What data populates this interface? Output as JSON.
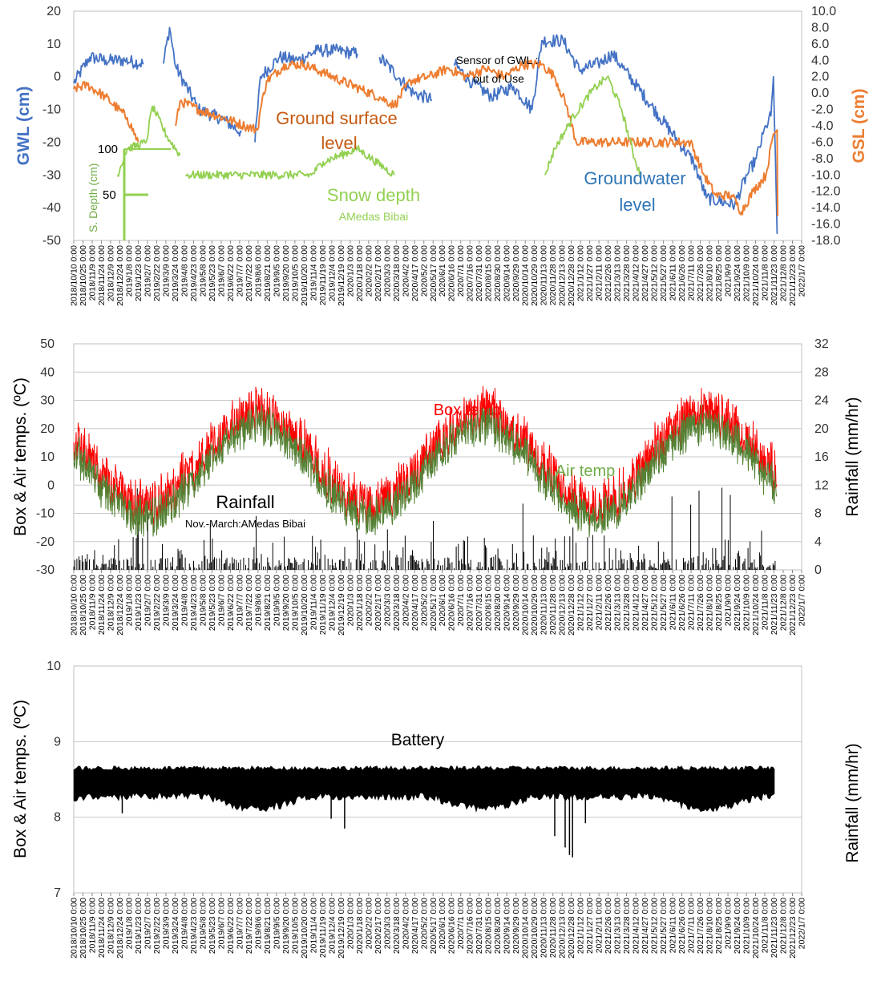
{
  "colors": {
    "gwl": "#4472C4",
    "gsl": "#ED7D31",
    "snow": "#92D050",
    "box": "#FF0000",
    "air": "#548235",
    "rain": "#000000",
    "battery": "#000000",
    "grid": "#C8C8C8"
  },
  "date_ticks": [
    "2018/10/10 0:00",
    "2018/10/25 0:00",
    "2018/11/9 0:00",
    "2018/11/24 0:00",
    "2018/12/9 0:00",
    "2018/12/24 0:00",
    "2019/1/8 0:00",
    "2019/1/23 0:00",
    "2019/2/7 0:00",
    "2019/2/22 0:00",
    "2019/3/9 0:00",
    "2019/3/24 0:00",
    "2019/4/8 0:00",
    "2019/4/23 0:00",
    "2019/5/8 0:00",
    "2019/5/23 0:00",
    "2019/6/7 0:00",
    "2019/6/22 0:00",
    "2019/7/7 0:00",
    "2019/7/22 0:00",
    "2019/8/6 0:00",
    "2019/8/21 0:00",
    "2019/9/5 0:00",
    "2019/9/20 0:00",
    "2019/10/5 0:00",
    "2019/10/20 0:00",
    "2019/11/4 0:00",
    "2019/11/19 0:00",
    "2019/12/4 0:00",
    "2019/12/19 0:00",
    "2020/1/3 0:00",
    "2020/1/18 0:00",
    "2020/2/2 0:00",
    "2020/2/17 0:00",
    "2020/3/3 0:00",
    "2020/3/18 0:00",
    "2020/4/2 0:00",
    "2020/4/17 0:00",
    "2020/5/2 0:00",
    "2020/5/17 0:00",
    "2020/6/1 0:00",
    "2020/6/16 0:00",
    "2020/7/1 0:00",
    "2020/7/16 0:00",
    "2020/7/31 0:00",
    "2020/8/15 0:00",
    "2020/8/30 0:00",
    "2020/9/14 0:00",
    "2020/9/29 0:00",
    "2020/10/14 0:00",
    "2020/10/29 0:00",
    "2020/11/13 0:00",
    "2020/11/28 0:00",
    "2020/12/13 0:00",
    "2020/12/28 0:00",
    "2021/1/12 0:00",
    "2021/1/27 0:00",
    "2021/2/11 0:00",
    "2021/2/26 0:00",
    "2021/3/13 0:00",
    "2021/3/28 0:00",
    "2021/4/12 0:00",
    "2021/4/27 0:00",
    "2021/5/12 0:00",
    "2021/5/27 0:00",
    "2021/6/11 0:00",
    "2021/6/26 0:00",
    "2021/7/11 0:00",
    "2021/7/26 0:00",
    "2021/8/10 0:00",
    "2021/8/25 0:00",
    "2021/9/9 0:00",
    "2021/9/24 0:00",
    "2021/10/9 0:00",
    "2021/10/24 0:00",
    "2021/11/8 0:00",
    "2021/11/23 0:00",
    "2021/12/8 0:00",
    "2021/12/23 0:00",
    "2022/1/7 0:00"
  ],
  "chart_data": [
    {
      "type": "line",
      "y_left": {
        "label": "GWL (cm)",
        "range": [
          -50,
          20
        ],
        "ticks": [
          "20",
          "10",
          "0",
          "-10",
          "-20",
          "-30",
          "-40",
          "-50"
        ]
      },
      "y_right": {
        "label": "GSL (cm)",
        "range": [
          -18,
          10
        ],
        "ticks": [
          "10.0",
          "8.0",
          "6.0",
          "4.0",
          "2.0",
          "0.0",
          "-2.0",
          "-4.0",
          "-6.0",
          "-8.0",
          "-10.0",
          "-12.0",
          "-14.0",
          "-16.0",
          "-18.0"
        ]
      },
      "series": [
        {
          "name": "Groundwater level",
          "axis": "left",
          "gaps_after": [
            4,
            10,
            17,
            20
          ],
          "points": [
            [
              "2018/10/10",
              -2
            ],
            [
              "2018/11/5",
              6
            ],
            [
              "2018/12/1",
              5
            ],
            [
              "2019/1/1",
              5
            ],
            [
              "2019/2/1",
              4
            ],
            [
              "2019/3/5",
              4
            ],
            [
              "2019/3/15",
              15
            ],
            [
              "2019/3/25",
              3
            ],
            [
              "2019/5/1",
              -10
            ],
            [
              "2019/6/10",
              -13
            ],
            [
              "2019/7/10",
              -17
            ],
            [
              "2019/8/1",
              -20
            ],
            [
              "2019/8/10",
              0
            ],
            [
              "2019/9/10",
              6
            ],
            [
              "2019/10/10",
              5
            ],
            [
              "2019/11/10",
              8
            ],
            [
              "2019/12/10",
              8
            ],
            [
              "2020/1/15",
              7
            ],
            [
              "2020/2/20",
              6
            ],
            [
              "2020/4/15",
              -5
            ],
            [
              "2020/5/15",
              -7
            ],
            [
              "2020/6/20",
              4
            ],
            [
              "2020/7/20",
              -2
            ],
            [
              "2020/8/20",
              -6
            ],
            [
              "2020/9/25",
              -3
            ],
            [
              "2020/10/25",
              -10
            ],
            [
              "2020/11/10",
              11
            ],
            [
              "2020/12/15",
              11
            ],
            [
              "2021/1/10",
              2
            ],
            [
              "2021/2/10",
              4
            ],
            [
              "2021/3/5",
              7
            ],
            [
              "2021/3/25",
              2
            ],
            [
              "2021/7/15",
              -26
            ],
            [
              "2021/8/5",
              -37
            ],
            [
              "2021/8/25",
              -38
            ],
            [
              "2021/9/20",
              -39
            ],
            [
              "2021/10/10",
              -30
            ],
            [
              "2021/10/25",
              -25
            ],
            [
              "2021/11/10",
              -15
            ],
            [
              "2021/11/18",
              -12
            ],
            [
              "2021/11/22",
              0
            ],
            [
              "2021/11/28",
              -48
            ]
          ]
        },
        {
          "name": "Ground surface level",
          "axis": "right",
          "gaps_after": [
            4
          ],
          "points": [
            [
              "2018/10/10",
              0.5
            ],
            [
              "2018/11/1",
              1.0
            ],
            [
              "2018/12/1",
              -0.5
            ],
            [
              "2019/1/5",
              -3
            ],
            [
              "2019/1/23",
              -6
            ],
            [
              "2019/3/25",
              -4
            ],
            [
              "2019/4/1",
              -1
            ],
            [
              "2019/5/1",
              -2
            ],
            [
              "2019/6/10",
              -3
            ],
            [
              "2019/7/15",
              -4
            ],
            [
              "2019/8/5",
              -4.5
            ],
            [
              "2019/8/10",
              -2
            ],
            [
              "2019/8/20",
              1.5
            ],
            [
              "2019/9/20",
              3.5
            ],
            [
              "2019/10/20",
              3.5
            ],
            [
              "2019/11/20",
              2.5
            ],
            [
              "2019/12/20",
              1.5
            ],
            [
              "2020/1/20",
              0.5
            ],
            [
              "2020/2/20",
              -0.5
            ],
            [
              "2020/3/15",
              -1.5
            ],
            [
              "2020/4/10",
              1.5
            ],
            [
              "2020/5/10",
              2
            ],
            [
              "2020/6/10",
              3
            ],
            [
              "2020/7/10",
              2
            ],
            [
              "2020/8/10",
              3
            ],
            [
              "2020/9/10",
              2
            ],
            [
              "2020/10/10",
              3.5
            ],
            [
              "2020/11/10",
              3.5
            ],
            [
              "2020/12/1",
              2
            ],
            [
              "2020/12/20",
              -1.5
            ],
            [
              "2021/1/5",
              -6
            ],
            [
              "2021/7/10",
              -6
            ],
            [
              "2021/8/1",
              -10
            ],
            [
              "2021/8/20",
              -12.5
            ],
            [
              "2021/9/15",
              -12.5
            ],
            [
              "2021/10/1",
              -14.5
            ],
            [
              "2021/10/20",
              -12
            ],
            [
              "2021/11/10",
              -10
            ],
            [
              "2021/11/22",
              -5
            ],
            [
              "2021/11/28",
              -4.5
            ],
            [
              "2021/11/29",
              -15
            ]
          ]
        },
        {
          "name": "Snow depth",
          "axis": "left",
          "gaps_after": [
            5,
            10
          ],
          "points": [
            [
              "2018/12/20",
              -30
            ],
            [
              "2019/1/5",
              -22
            ],
            [
              "2019/2/5",
              -20
            ],
            [
              "2019/2/15",
              -9
            ],
            [
              "2019/3/10",
              -18
            ],
            [
              "2019/4/1",
              -24
            ],
            [
              "2019/4/10",
              -30
            ],
            [
              "2019/11/1",
              -30
            ],
            [
              "2019/11/20",
              -26
            ],
            [
              "2020/1/15",
              -22
            ],
            [
              "2020/3/15",
              -30
            ],
            [
              "2020/11/15",
              -30
            ],
            [
              "2020/12/1",
              -22
            ],
            [
              "2021/1/1",
              -12
            ],
            [
              "2021/2/1",
              -4
            ],
            [
              "2021/2/25",
              0
            ],
            [
              "2021/3/20",
              -10
            ],
            [
              "2021/4/10",
              -25
            ],
            [
              "2021/4/20",
              -30
            ]
          ]
        }
      ],
      "annotations": [
        {
          "text": "Ground surface level",
          "lines": [
            "Ground surface",
            "level"
          ]
        },
        {
          "text": "Snow depth"
        },
        {
          "text": "AMedas Bibai"
        },
        {
          "text": "Groundwater level",
          "lines": [
            "Groundwater",
            "level"
          ]
        },
        {
          "text": "Sensor of GWL : out of Use",
          "lines": [
            "Sensor of GWL :",
            "out of Use"
          ]
        }
      ],
      "inset_scale": {
        "label": "S. Depth (cm)",
        "ticks": [
          "100",
          "50"
        ]
      }
    },
    {
      "type": "line",
      "y_left": {
        "label": "Box & Air temps. (ºC)",
        "range": [
          -30,
          50
        ],
        "ticks": [
          "50",
          "40",
          "30",
          "20",
          "10",
          "0",
          "-10",
          "-20",
          "-30"
        ]
      },
      "y_right": {
        "label": "Rainfall (mm/hr)",
        "range": [
          0,
          32
        ],
        "ticks": [
          "32",
          "28",
          "24",
          "20",
          "16",
          "12",
          "8",
          "4",
          "0"
        ]
      },
      "series": [
        {
          "name": "Box temp",
          "axis": "left"
        },
        {
          "name": "Air temp",
          "axis": "left"
        },
        {
          "name": "Rainfall",
          "axis": "right",
          "type": "bar"
        }
      ],
      "annotations": [
        {
          "text": "Box temp"
        },
        {
          "text": "Air temp"
        },
        {
          "text": "Rainfall"
        },
        {
          "text": "Nov.-March:AMedas Bibai"
        }
      ]
    },
    {
      "type": "line",
      "y_left": {
        "label": "Box & Air temps. (ºC)",
        "range": [
          7,
          10
        ],
        "ticks": [
          "10",
          "9",
          "8",
          "7"
        ]
      },
      "y_right": {
        "label": "Rainfall (mm/hr)"
      },
      "series": [
        {
          "name": "Battery",
          "axis": "left"
        }
      ],
      "annotations": [
        {
          "text": "Battery"
        }
      ]
    }
  ]
}
